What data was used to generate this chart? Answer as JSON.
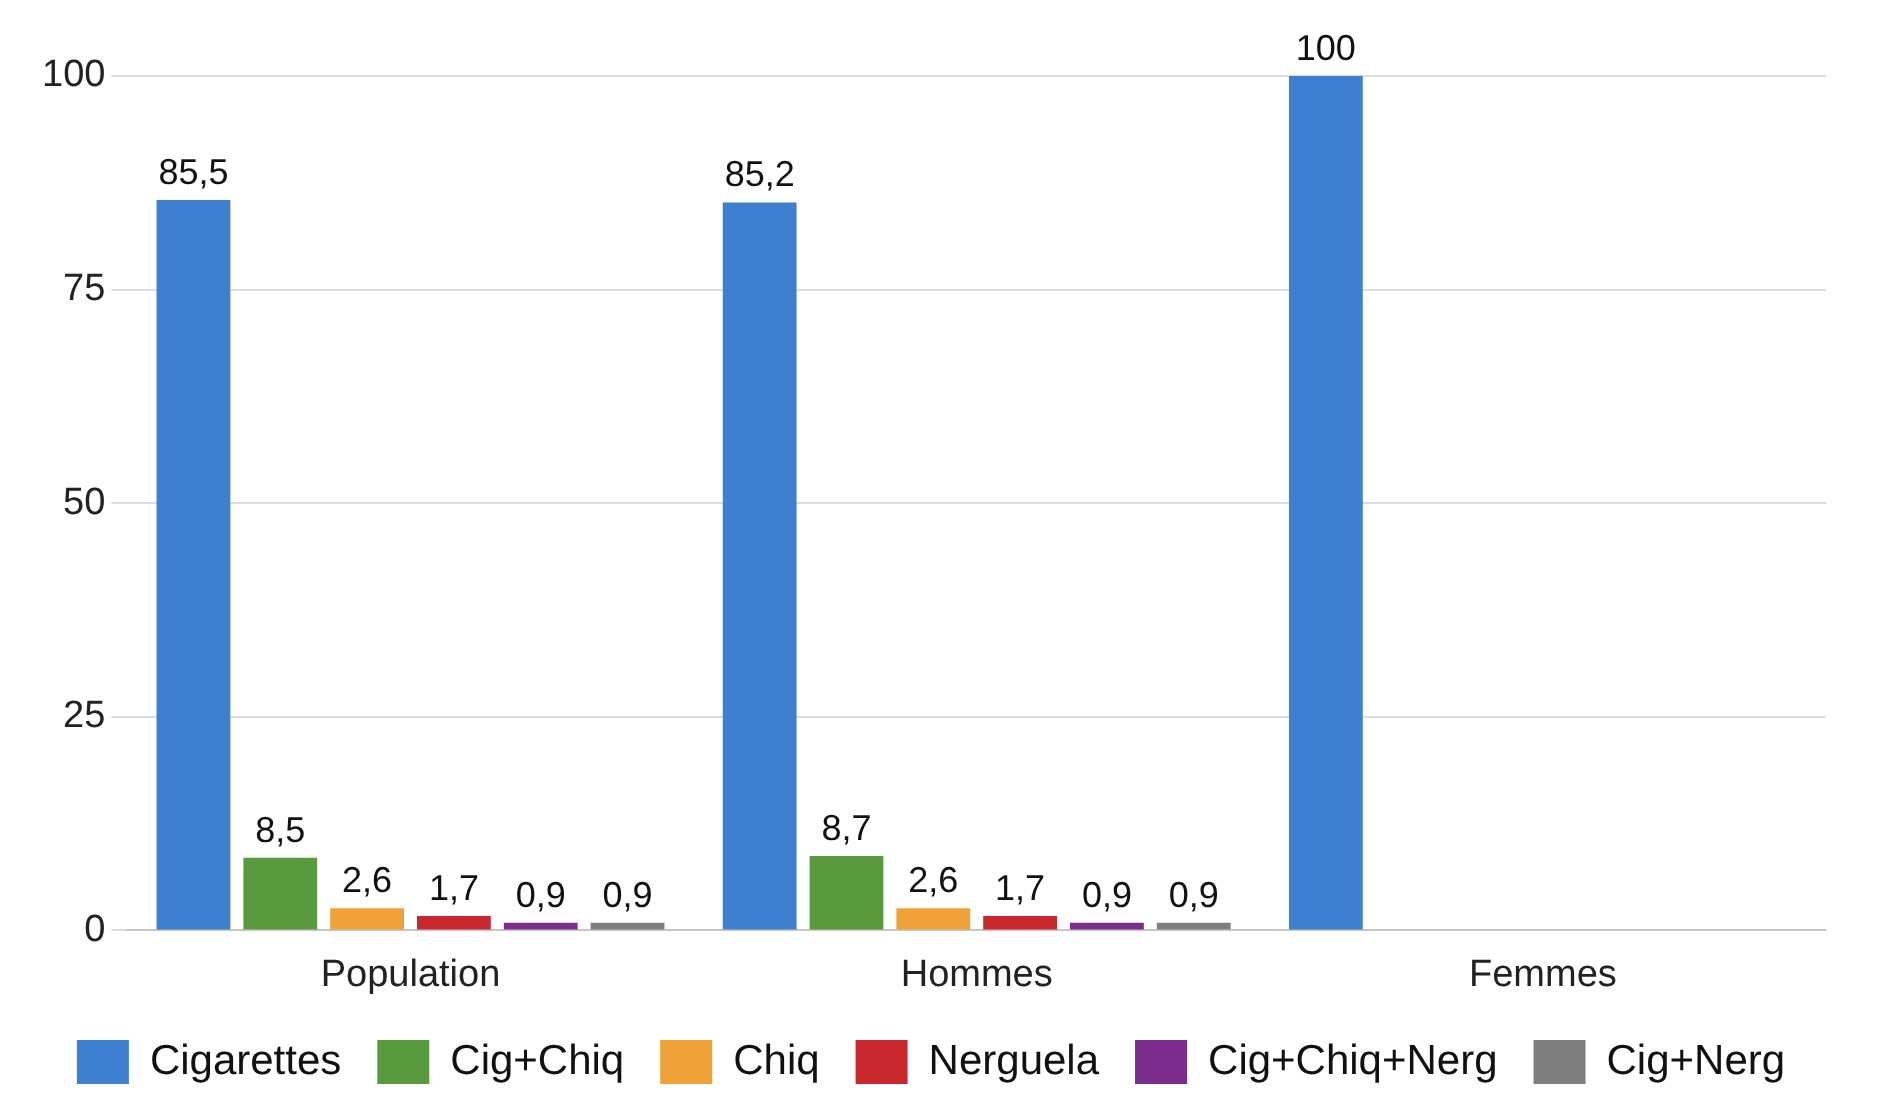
{
  "chart_data": {
    "type": "bar",
    "categories": [
      "Population",
      "Hommes",
      "Femmes"
    ],
    "series": [
      {
        "name": "Cigarettes",
        "color": "#3f7fd0",
        "values": [
          85.5,
          85.2,
          100
        ],
        "value_labels": [
          "85,5",
          "85,2",
          "100"
        ]
      },
      {
        "name": "Cig+Chiq",
        "color": "#5a9a3e",
        "values": [
          8.5,
          8.7,
          null
        ],
        "value_labels": [
          "8,5",
          "8,7",
          null
        ]
      },
      {
        "name": "Chiq",
        "color": "#eea238",
        "values": [
          2.6,
          2.6,
          null
        ],
        "value_labels": [
          "2,6",
          "2,6",
          null
        ]
      },
      {
        "name": "Nerguela",
        "color": "#c8282e",
        "values": [
          1.7,
          1.7,
          null
        ],
        "value_labels": [
          "1,7",
          "1,7",
          null
        ]
      },
      {
        "name": "Cig+Chiq+Nerg",
        "color": "#7b2d8e",
        "values": [
          0.9,
          0.9,
          null
        ],
        "value_labels": [
          "0,9",
          "0,9",
          null
        ]
      },
      {
        "name": "Cig+Nerg",
        "color": "#7f7f7f",
        "values": [
          0.9,
          0.9,
          null
        ],
        "value_labels": [
          "0,9",
          "0,9",
          null
        ]
      }
    ],
    "ylim": [
      0,
      100
    ],
    "yticks": [
      0,
      25,
      50,
      75,
      100
    ],
    "grid": "y",
    "legend": "bottom"
  }
}
